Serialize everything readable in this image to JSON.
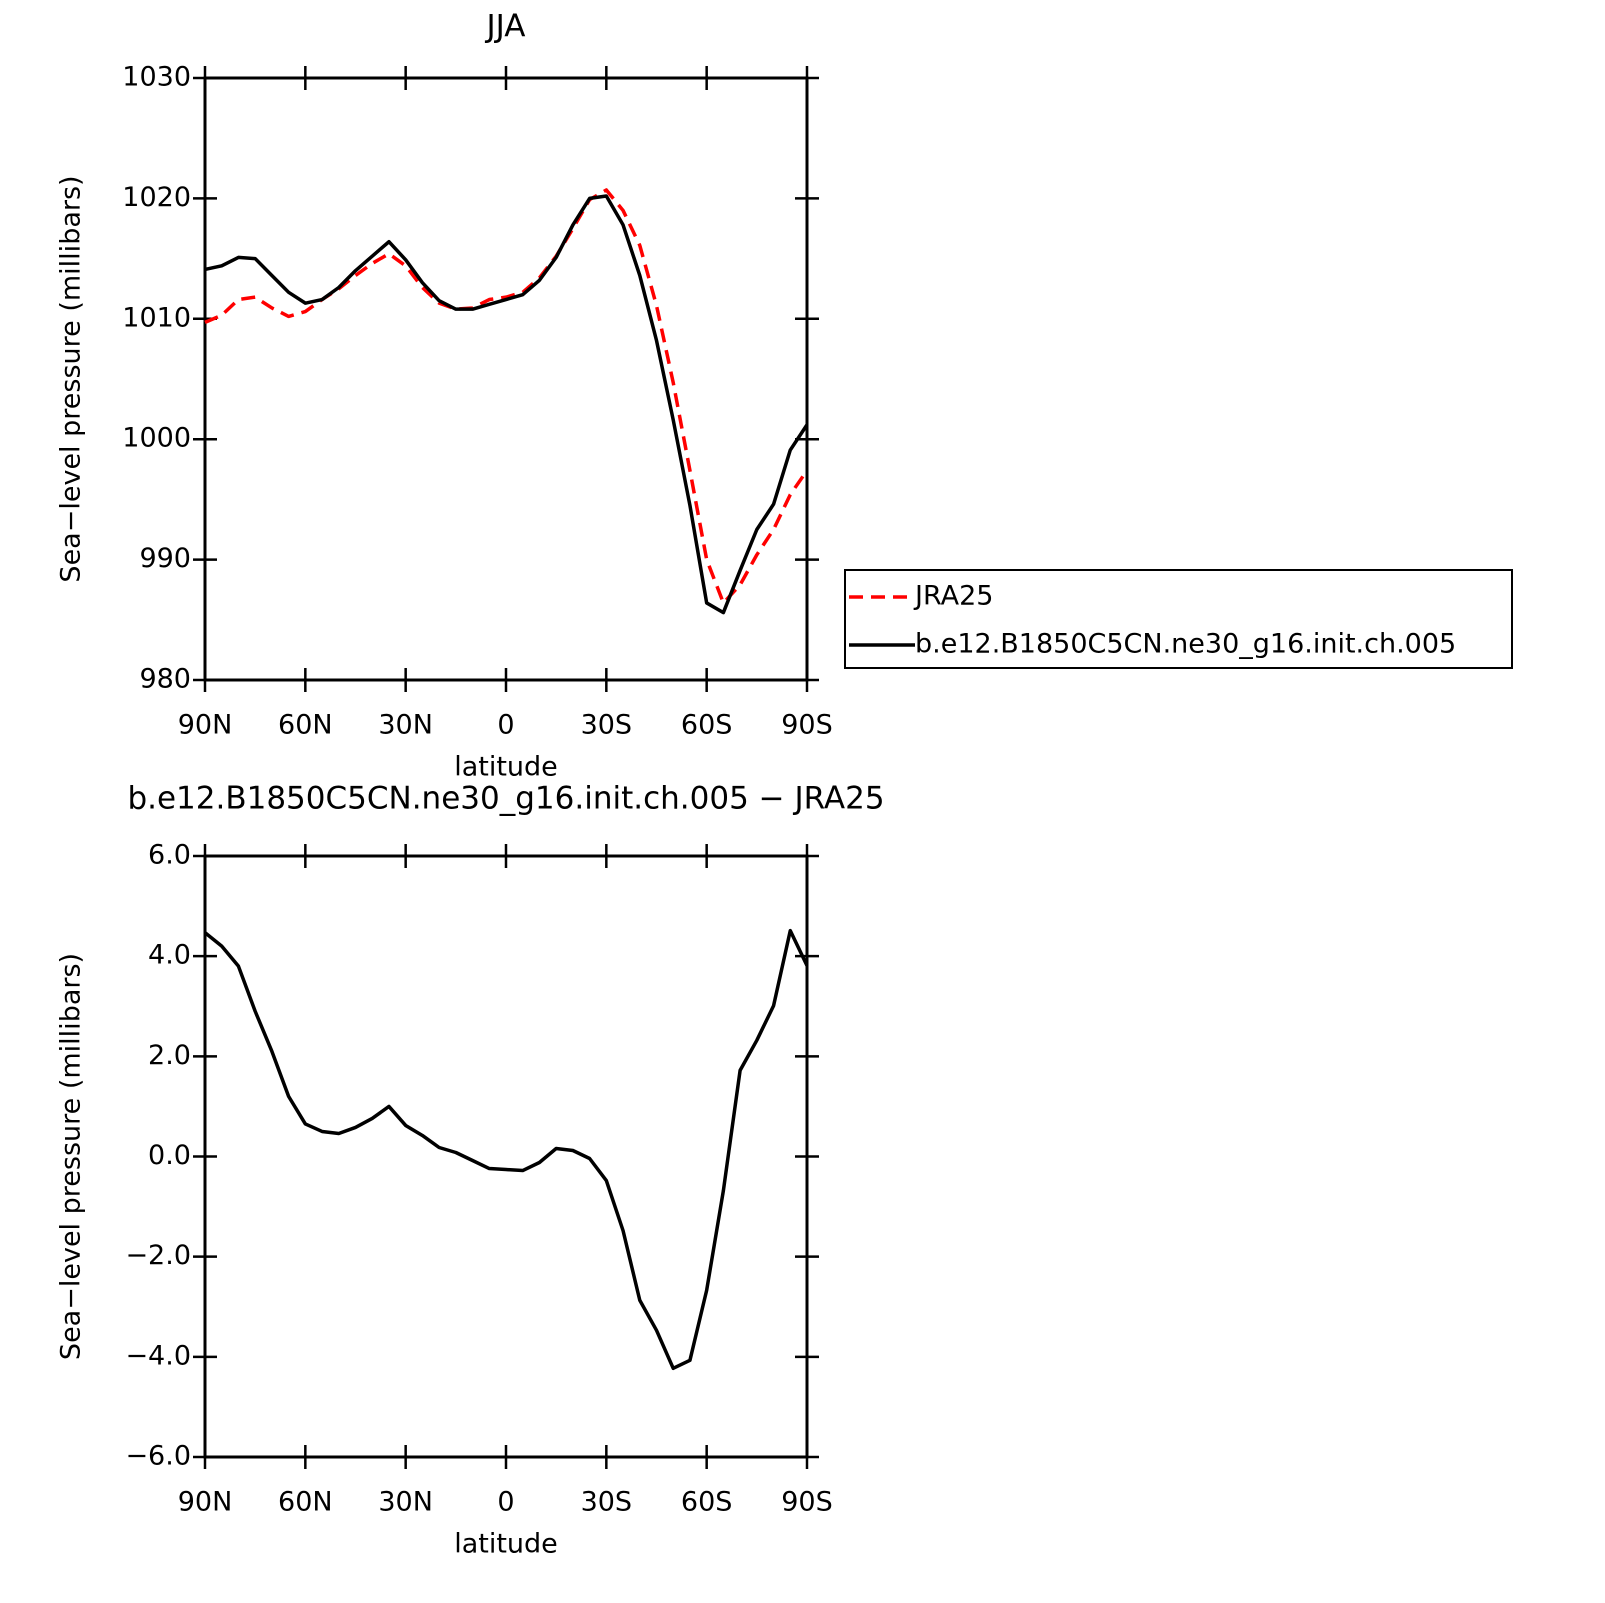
{
  "chart_data": [
    {
      "type": "line",
      "title": "JJA",
      "xlabel": "latitude",
      "ylabel": "Sea−level pressure (millibars)",
      "x": [
        90,
        85,
        80,
        75,
        70,
        65,
        60,
        55,
        50,
        45,
        40,
        35,
        30,
        25,
        20,
        15,
        10,
        5,
        0,
        -5,
        -10,
        -15,
        -20,
        -25,
        -30,
        -35,
        -40,
        -45,
        -50,
        -55,
        -60,
        -65,
        -70,
        -75,
        -80,
        -85,
        -90
      ],
      "series": [
        {
          "name": "JRA25",
          "color": "#ff0000",
          "linestyle": "dashed",
          "values": [
            1009.7,
            1010.3,
            1011.6,
            1011.8,
            1010.9,
            1010.2,
            1010.6,
            1011.6,
            1012.5,
            1013.6,
            1014.6,
            1015.4,
            1014.4,
            1012.6,
            1011.3,
            1010.8,
            1010.9,
            1011.6,
            1011.8,
            1012.2,
            1013.4,
            1015.2,
            1017.5,
            1019.9,
            1020.7,
            1019.0,
            1016.1,
            1011.1,
            1004.7,
            997.4,
            990.0,
            986.4,
            987.9,
            990.4,
            992.5,
            995.4,
            997.4
          ]
        },
        {
          "name": "b.e12.B1850C5CN.ne30_g16.init.ch.005",
          "color": "#000000",
          "linestyle": "solid",
          "values": [
            1014.1,
            1014.4,
            1015.1,
            1015.0,
            1013.6,
            1012.2,
            1011.3,
            1011.6,
            1012.6,
            1014.0,
            1015.2,
            1016.4,
            1014.9,
            1013.0,
            1011.5,
            1010.8,
            1010.8,
            1011.2,
            1011.6,
            1012.0,
            1013.2,
            1015.1,
            1017.8,
            1020.0,
            1020.2,
            1017.8,
            1013.6,
            1008.2,
            1001.6,
            994.5,
            986.4,
            985.6,
            989.1,
            992.5,
            994.6,
            999.1,
            1001.2
          ]
        }
      ],
      "xlim": [
        90,
        -90
      ],
      "xticks": [
        {
          "value": 90,
          "label": "90N"
        },
        {
          "value": 60,
          "label": "60N"
        },
        {
          "value": 30,
          "label": "30N"
        },
        0,
        {
          "value": -30,
          "label": "30S"
        },
        {
          "value": -60,
          "label": "60S"
        },
        {
          "value": -90,
          "label": "90S"
        }
      ],
      "ylim": [
        980,
        1030
      ],
      "yticks": [
        980,
        990,
        1000,
        1010,
        1020,
        1030
      ],
      "legend": "right"
    },
    {
      "type": "line",
      "title": "b.e12.B1850C5CN.ne30_g16.init.ch.005 − JRA25",
      "xlabel": "latitude",
      "ylabel": "Sea−level pressure (millibars)",
      "x": [
        90,
        85,
        80,
        75,
        70,
        65,
        60,
        55,
        50,
        45,
        40,
        35,
        30,
        25,
        20,
        15,
        10,
        5,
        0,
        -5,
        -10,
        -15,
        -20,
        -25,
        -30,
        -35,
        -40,
        -45,
        -50,
        -55,
        -60,
        -65,
        -70,
        -75,
        -80,
        -85,
        -90
      ],
      "series": [
        {
          "color": "#000000",
          "linestyle": "solid",
          "values": [
            4.47,
            4.2,
            3.8,
            2.9,
            2.1,
            1.2,
            0.65,
            0.5,
            0.46,
            0.58,
            0.76,
            1.0,
            0.62,
            0.42,
            0.18,
            0.08,
            -0.08,
            -0.24,
            -0.26,
            -0.28,
            -0.12,
            0.16,
            0.12,
            -0.04,
            -0.48,
            -1.48,
            -2.87,
            -3.47,
            -4.23,
            -4.07,
            -2.67,
            -0.68,
            1.72,
            2.32,
            3.01,
            4.51,
            3.81
          ]
        }
      ],
      "xlim": [
        90,
        -90
      ],
      "xticks": [
        {
          "value": 90,
          "label": "90N"
        },
        {
          "value": 60,
          "label": "60N"
        },
        {
          "value": 30,
          "label": "30N"
        },
        0,
        {
          "value": -30,
          "label": "30S"
        },
        {
          "value": -60,
          "label": "60S"
        },
        {
          "value": -90,
          "label": "90S"
        }
      ],
      "ylim": [
        -6,
        6
      ],
      "yticks": [
        {
          "value": -6,
          "label": "−6.0"
        },
        {
          "value": -4,
          "label": "−4.0"
        },
        {
          "value": -2,
          "label": "−2.0"
        },
        {
          "value": 0,
          "label": "0.0"
        },
        {
          "value": 2,
          "label": "2.0"
        },
        {
          "value": 4,
          "label": "4.0"
        },
        {
          "value": 6,
          "label": "6.0"
        }
      ]
    }
  ]
}
